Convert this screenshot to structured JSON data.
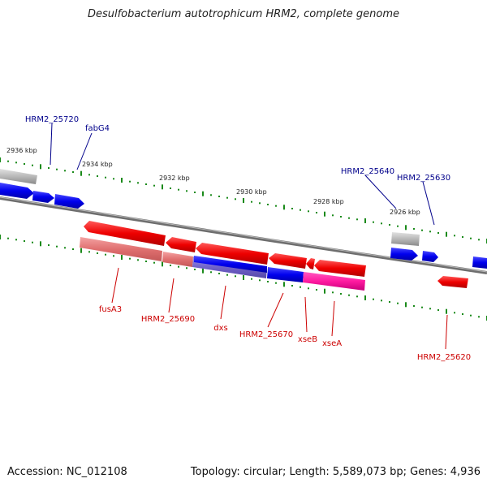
{
  "title": "Desulfobacterium autotrophicum HRM2, complete genome",
  "footer": {
    "accession": "Accession: NC_012108",
    "summary": "Topology: circular; Length: 5,589,073 bp; Genes: 4,936"
  },
  "colors": {
    "forward_cds": "#0000ff",
    "reverse_cds": "#ff0000",
    "rna_or_other": "#b0b0b0",
    "highlight_forward": "#e07070",
    "highlight_mixed": "#7a6cd0",
    "highlight_magenta": "#ff1aa0",
    "ticks": "#1a8a1a",
    "backbone": "#777777",
    "label_blue": "#00008b",
    "label_red": "#cc0000"
  },
  "scale_labels": [
    "2936 kbp",
    "2934 kbp",
    "2932 kbp",
    "2930 kbp",
    "2928 kbp",
    "2926 kbp"
  ],
  "gene_labels": {
    "forward": [
      "HRM2_25720",
      "fabG4",
      "HRM2_25640",
      "HRM2_25630"
    ],
    "reverse": [
      "fusA3",
      "HRM2_25690",
      "dxs",
      "HRM2_25670",
      "xseB",
      "xseA",
      "HRM2_25620"
    ]
  }
}
